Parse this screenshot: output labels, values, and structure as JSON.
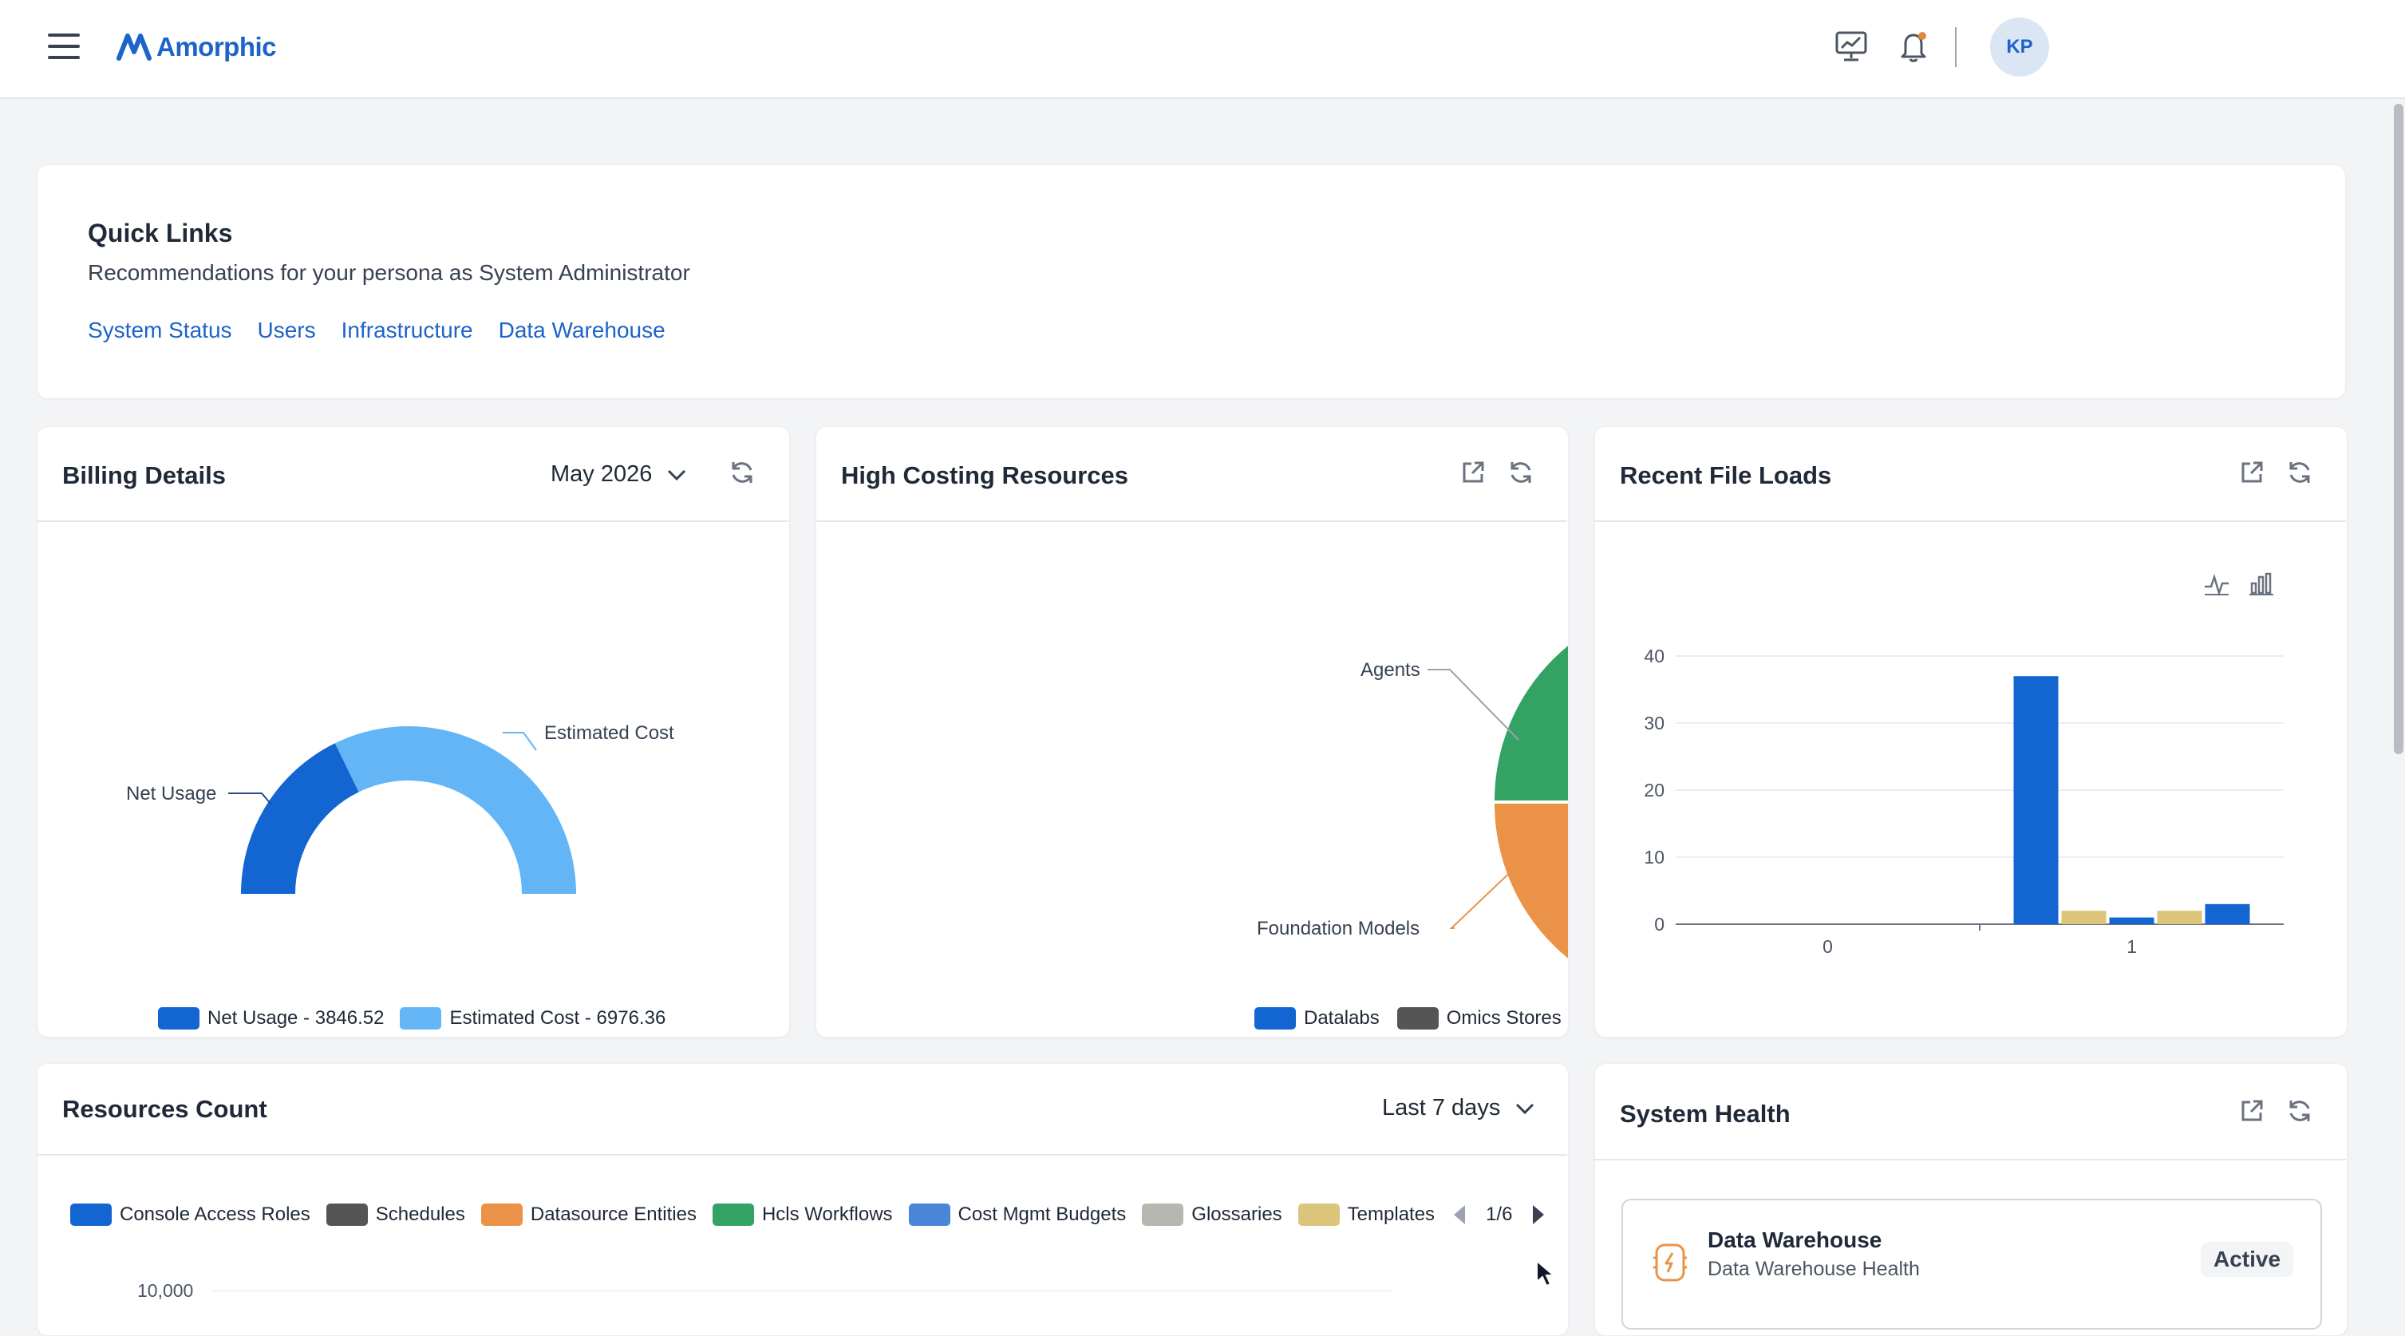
{
  "app": {
    "name": "Amorphic"
  },
  "header": {
    "avatar_initials": "KP"
  },
  "quick_links": {
    "title": "Quick Links",
    "subtitle": "Recommendations for your persona as System Administrator",
    "links": [
      "System Status",
      "Users",
      "Infrastructure",
      "Data Warehouse"
    ]
  },
  "billing": {
    "title": "Billing Details",
    "period": "May 2026",
    "chart_data": {
      "type": "pie",
      "subtype": "half-donut",
      "slices": [
        {
          "label": "Net Usage",
          "value": 3846.52,
          "color": "#1366d1"
        },
        {
          "label": "Estimated Cost",
          "value": 6976.36,
          "color": "#64b5f6"
        }
      ],
      "legend": [
        "Net Usage - 3846.52",
        "Estimated Cost - 6976.36"
      ],
      "legend_placement": "bottom"
    }
  },
  "high_costing": {
    "title": "High Costing Resources",
    "chart_data": {
      "type": "pie",
      "visible_labels": [
        "Agents",
        "Foundation Models"
      ],
      "slice_colors": {
        "Agents": "#34a262",
        "Foundation Models": "#ea9348"
      },
      "legend": [
        {
          "label": "Datalabs",
          "color": "#1366d1"
        },
        {
          "label": "Omics Stores",
          "color": "#555555"
        }
      ],
      "legend_placement": "bottom"
    }
  },
  "recent_file_loads": {
    "title": "Recent File Loads",
    "chart_data": {
      "type": "bar",
      "categories": [
        "0",
        "1"
      ],
      "ylim": [
        0,
        40
      ],
      "yticks": [
        "0",
        "10",
        "20",
        "30",
        "40"
      ],
      "grid": true,
      "series": [
        {
          "color": "#1366d1",
          "values": [
            0,
            37
          ]
        },
        {
          "color": "#dcc47a",
          "values": [
            0,
            2
          ]
        },
        {
          "color": "#1366d1",
          "values": [
            0,
            1
          ]
        },
        {
          "color": "#dcc47a",
          "values": [
            0,
            2
          ]
        },
        {
          "color": "#1366d1",
          "values": [
            0,
            3
          ]
        }
      ]
    }
  },
  "resources_count": {
    "title": "Resources Count",
    "period": "Last 7 days",
    "legend": [
      {
        "label": "Console Access Roles",
        "color": "#1366d1"
      },
      {
        "label": "Schedules",
        "color": "#555555"
      },
      {
        "label": "Datasource Entities",
        "color": "#ea9348"
      },
      {
        "label": "Hcls Workflows",
        "color": "#34a262"
      },
      {
        "label": "Cost Mgmt Budgets",
        "color": "#4a86d8"
      },
      {
        "label": "Glossaries",
        "color": "#b8b6b0"
      },
      {
        "label": "Templates",
        "color": "#dcc47a"
      }
    ],
    "page": "1/6",
    "chart_data": {
      "type": "line",
      "yticks": [
        "10,000"
      ]
    }
  },
  "system_health": {
    "title": "System Health",
    "items": [
      {
        "name": "Data Warehouse",
        "description": "Data Warehouse Health",
        "status": "Active"
      }
    ]
  }
}
